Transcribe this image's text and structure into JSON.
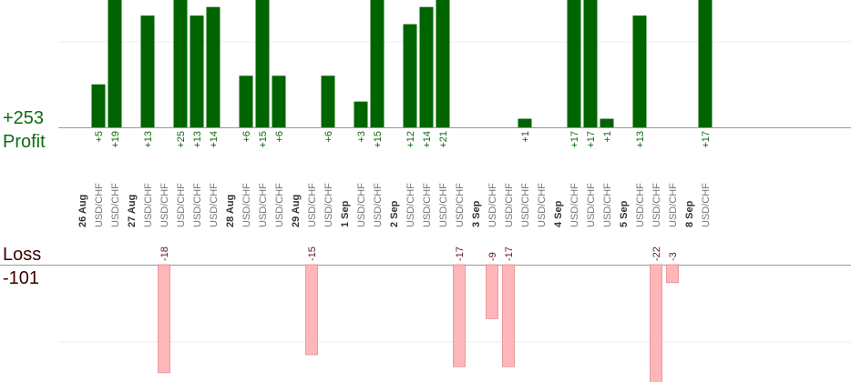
{
  "summary": {
    "profit_total": "+253",
    "profit_label": "Profit",
    "loss_label": "Loss",
    "loss_total": "-101"
  },
  "colors": {
    "win_bar": "#006400",
    "loss_bar": "#ffb6b9",
    "loss_bar_stroke": "#e58a8f",
    "axis": "#999999",
    "grid": "#eeeeee"
  },
  "chart_data": {
    "type": "bar",
    "groups": [
      {
        "date": "26 Aug",
        "trades": [
          {
            "symbol": "USD/CHF",
            "value": 5
          },
          {
            "symbol": "USD/CHF",
            "value": 19
          }
        ]
      },
      {
        "date": "27 Aug",
        "trades": [
          {
            "symbol": "USD/CHF",
            "value": 13
          },
          {
            "symbol": "USD/CHF",
            "value": -18
          },
          {
            "symbol": "USD/CHF",
            "value": 25
          },
          {
            "symbol": "USD/CHF",
            "value": 13
          },
          {
            "symbol": "USD/CHF",
            "value": 14
          }
        ]
      },
      {
        "date": "28 Aug",
        "trades": [
          {
            "symbol": "USD/CHF",
            "value": 6
          },
          {
            "symbol": "USD/CHF",
            "value": 15
          },
          {
            "symbol": "USD/CHF",
            "value": 6
          }
        ]
      },
      {
        "date": "29 Aug",
        "trades": [
          {
            "symbol": "USD/CHF",
            "value": -15
          },
          {
            "symbol": "USD/CHF",
            "value": 6
          }
        ]
      },
      {
        "date": "1 Sep",
        "trades": [
          {
            "symbol": "USD/CHF",
            "value": 3
          },
          {
            "symbol": "USD/CHF",
            "value": 15
          }
        ]
      },
      {
        "date": "2 Sep",
        "trades": [
          {
            "symbol": "USD/CHF",
            "value": 12
          },
          {
            "symbol": "USD/CHF",
            "value": 14
          },
          {
            "symbol": "USD/CHF",
            "value": 21
          },
          {
            "symbol": "USD/CHF",
            "value": -17
          }
        ]
      },
      {
        "date": "3 Sep",
        "trades": [
          {
            "symbol": "USD/CHF",
            "value": -9
          },
          {
            "symbol": "USD/CHF",
            "value": -17
          },
          {
            "symbol": "USD/CHF",
            "value": 1
          },
          {
            "symbol": "USD/CHF",
            "value": null
          }
        ]
      },
      {
        "date": "4 Sep",
        "trades": [
          {
            "symbol": "USD/CHF",
            "value": 17
          },
          {
            "symbol": "USD/CHF",
            "value": 17
          },
          {
            "symbol": "USD/CHF",
            "value": 1
          }
        ]
      },
      {
        "date": "5 Sep",
        "trades": [
          {
            "symbol": "USD/CHF",
            "value": 13
          },
          {
            "symbol": "USD/CHF",
            "value": -22
          },
          {
            "symbol": "USD/CHF",
            "value": -3
          }
        ]
      },
      {
        "date": "8 Sep",
        "trades": [
          {
            "symbol": "USD/CHF",
            "value": 17
          }
        ]
      }
    ]
  }
}
